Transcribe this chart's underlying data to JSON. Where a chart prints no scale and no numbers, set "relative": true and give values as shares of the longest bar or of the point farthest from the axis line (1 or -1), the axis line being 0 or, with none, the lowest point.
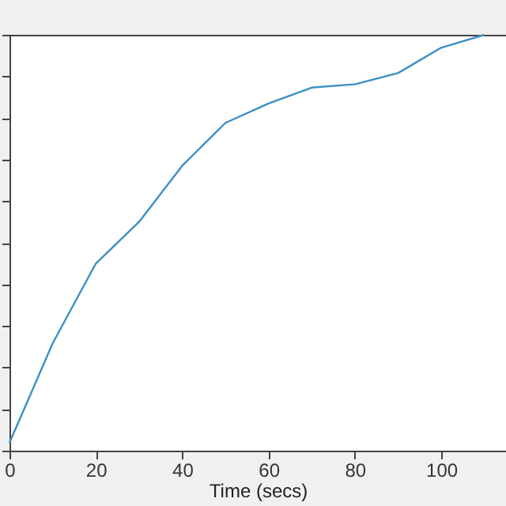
{
  "chart_data": {
    "type": "line",
    "xlabel": "Time (secs)",
    "relative": true,
    "tick_labels": "x",
    "grid": false,
    "marker": "none",
    "line_style": "solid",
    "x": [
      0,
      10,
      20,
      30,
      40,
      50,
      60,
      70,
      80,
      90,
      100,
      110
    ],
    "series": [
      {
        "color": "#3d8fc4",
        "values": [
          0.019,
          0.258,
          0.45,
          0.55,
          0.685,
          0.788,
          0.835,
          0.873,
          0.881,
          0.908,
          0.969,
          1
        ]
      }
    ],
    "xlim": [
      0,
      115
    ],
    "xticks": [
      0,
      20,
      40,
      60,
      80,
      100
    ]
  }
}
